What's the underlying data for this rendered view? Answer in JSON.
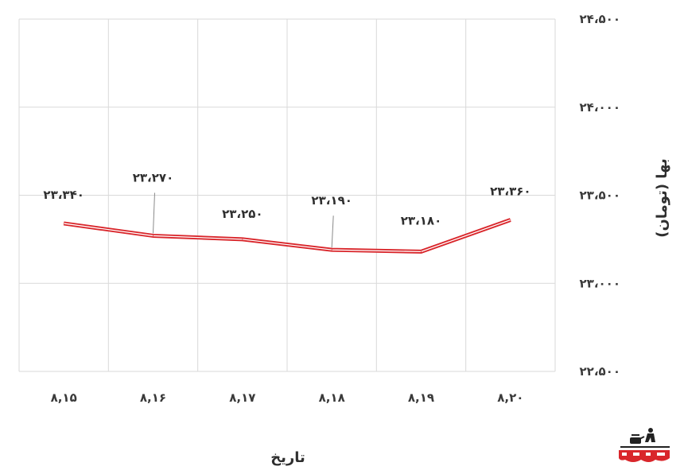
{
  "chart_data": {
    "type": "line",
    "x": [
      "8,15",
      "8,16",
      "8,17",
      "8,18",
      "8,19",
      "8,20"
    ],
    "series": [
      {
        "values": [
          23340,
          23270,
          23250,
          23190,
          23180,
          23360
        ]
      }
    ],
    "data_labels": [
      "۲۳،۳۴۰",
      "۲۳،۲۷۰",
      "۲۳،۲۵۰",
      "۲۳،۱۹۰",
      "۲۳،۱۸۰",
      "۲۳،۳۶۰"
    ],
    "x_tick_labels": [
      "۸,۱۵",
      "۸,۱۶",
      "۸,۱۷",
      "۸,۱۸",
      "۸,۱۹",
      "۸,۲۰"
    ],
    "y_ticks": [
      22500,
      23000,
      23500,
      24000,
      24500
    ],
    "y_tick_labels": [
      "۲۲،۵۰۰",
      "۲۳،۰۰۰",
      "۲۳،۵۰۰",
      "۲۴،۰۰۰",
      "۲۴،۵۰۰"
    ],
    "ylim": [
      22500,
      24500
    ],
    "xlabel": "تاریخ",
    "ylabel": "بها (تومان)",
    "y_axis_side": "right",
    "grid": true,
    "line_color": "#d9262b",
    "grid_color": "#d9d9d9"
  }
}
